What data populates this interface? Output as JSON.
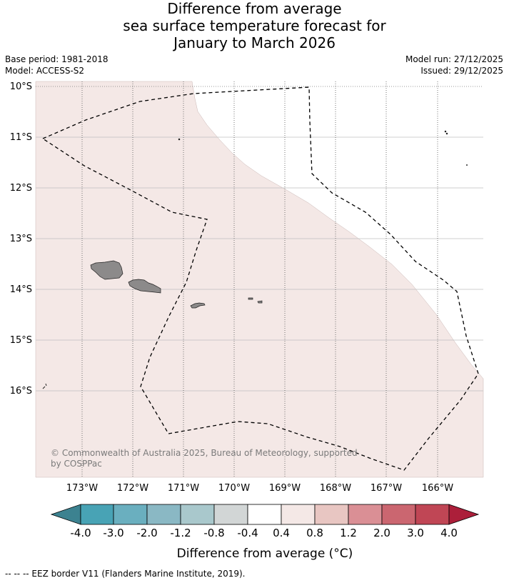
{
  "title": {
    "line1": "Difference from average",
    "line2": "sea surface temperature forecast for",
    "line3": "January to March 2026"
  },
  "meta": {
    "base_period": "Base period: 1981-2018",
    "model": "Model: ACCESS-S2",
    "model_run": "Model run: 27/12/2025",
    "issued": "Issued: 29/12/2025"
  },
  "map": {
    "lat_labels": [
      "10°S",
      "11°S",
      "12°S",
      "13°S",
      "14°S",
      "15°S",
      "16°S"
    ],
    "lon_labels": [
      "173°W",
      "172°W",
      "171°W",
      "170°W",
      "169°W",
      "168°W",
      "167°W",
      "166°W"
    ],
    "copyright_line1": "© Commonwealth of Australia 2025, Bureau of Meteorology, supported",
    "copyright_line2": "by COSPPac",
    "anomaly_fill_color": "#f4e8e6",
    "neutral_fill_color": "#ffffff",
    "land_color": "#8c8a8a"
  },
  "colorbar": {
    "tick_labels": [
      "-4.0",
      "-3.0",
      "-2.0",
      "-1.2",
      "-0.8",
      "-0.4",
      "0.4",
      "0.8",
      "1.2",
      "2.0",
      "3.0",
      "4.0"
    ],
    "colors": [
      "#3c8290",
      "#48a3b5",
      "#6aafbf",
      "#8ab8c4",
      "#a9c8cc",
      "#d2d6d6",
      "#ffffff",
      "#f4e8e6",
      "#e8c6c2",
      "#da8f95",
      "#cb6670",
      "#c04655",
      "#ac1f3a"
    ],
    "label": "Difference from average (°C)"
  },
  "footer": {
    "legend": "-- -- -- EEZ border V11 (Flanders Marine Institute, 2019)."
  }
}
